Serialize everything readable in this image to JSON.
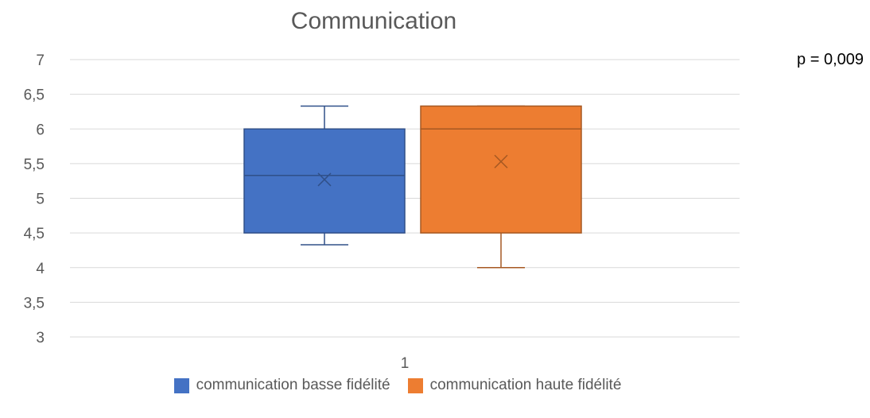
{
  "chart_data": {
    "type": "boxplot",
    "title": "Communication",
    "annotation": "p = 0,009",
    "categories": [
      "1"
    ],
    "ylim": [
      3,
      7
    ],
    "yticks": [
      3,
      3.5,
      4,
      4.5,
      5,
      5.5,
      6,
      6.5,
      7
    ],
    "ytick_labels": [
      "3",
      "3,5",
      "4",
      "4,5",
      "5",
      "5,5",
      "6",
      "6,5",
      "7"
    ],
    "grid": true,
    "legend_position": "bottom",
    "series": [
      {
        "name": "communication basse fidélité",
        "color": "#4472C4",
        "min": 4.33,
        "q1": 4.5,
        "median": 5.33,
        "q3": 6.0,
        "max": 6.33,
        "mean": 5.27
      },
      {
        "name": "communication haute fidélité",
        "color": "#ED7D31",
        "min": 4.0,
        "q1": 4.5,
        "median": 6.0,
        "q3": 6.33,
        "max": 6.33,
        "mean": 5.53
      }
    ]
  }
}
